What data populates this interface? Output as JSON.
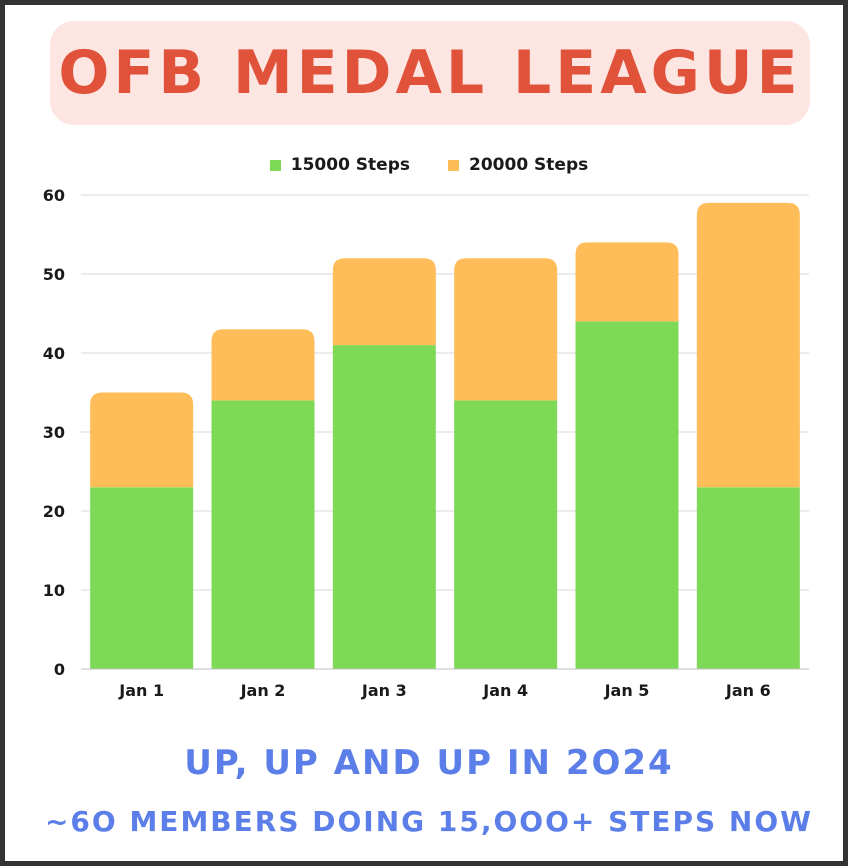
{
  "colors": {
    "title_bg": "#fde6e2",
    "title_text": "#e0533a",
    "footer_text": "#5b7ee8",
    "frame": "#333333",
    "grid": "#d9d9d9"
  },
  "header": {
    "title": "OFB MEDAL LEAGUE"
  },
  "footer": {
    "line1": "UP, UP AND UP IN 2O24",
    "line2": "~6O MEMBERS DOING 15,OOO+ STEPS NOW"
  },
  "chart_data": {
    "type": "bar",
    "stacked": true,
    "title": "",
    "xlabel": "",
    "ylabel": "",
    "categories": [
      "Jan 1",
      "Jan 2",
      "Jan 3",
      "Jan 4",
      "Jan 5",
      "Jan 6"
    ],
    "series": [
      {
        "name": "15000 Steps",
        "color": "#7ed957",
        "values": [
          23,
          34,
          41,
          34,
          44,
          23
        ]
      },
      {
        "name": "20000 Steps",
        "color": "#ffbd59",
        "values": [
          12,
          9,
          11,
          18,
          10,
          36
        ]
      }
    ],
    "ylim": [
      0,
      60
    ],
    "yticks": [
      0,
      10,
      20,
      30,
      40,
      50,
      60
    ],
    "grid": true,
    "legend_position": "top-center"
  }
}
